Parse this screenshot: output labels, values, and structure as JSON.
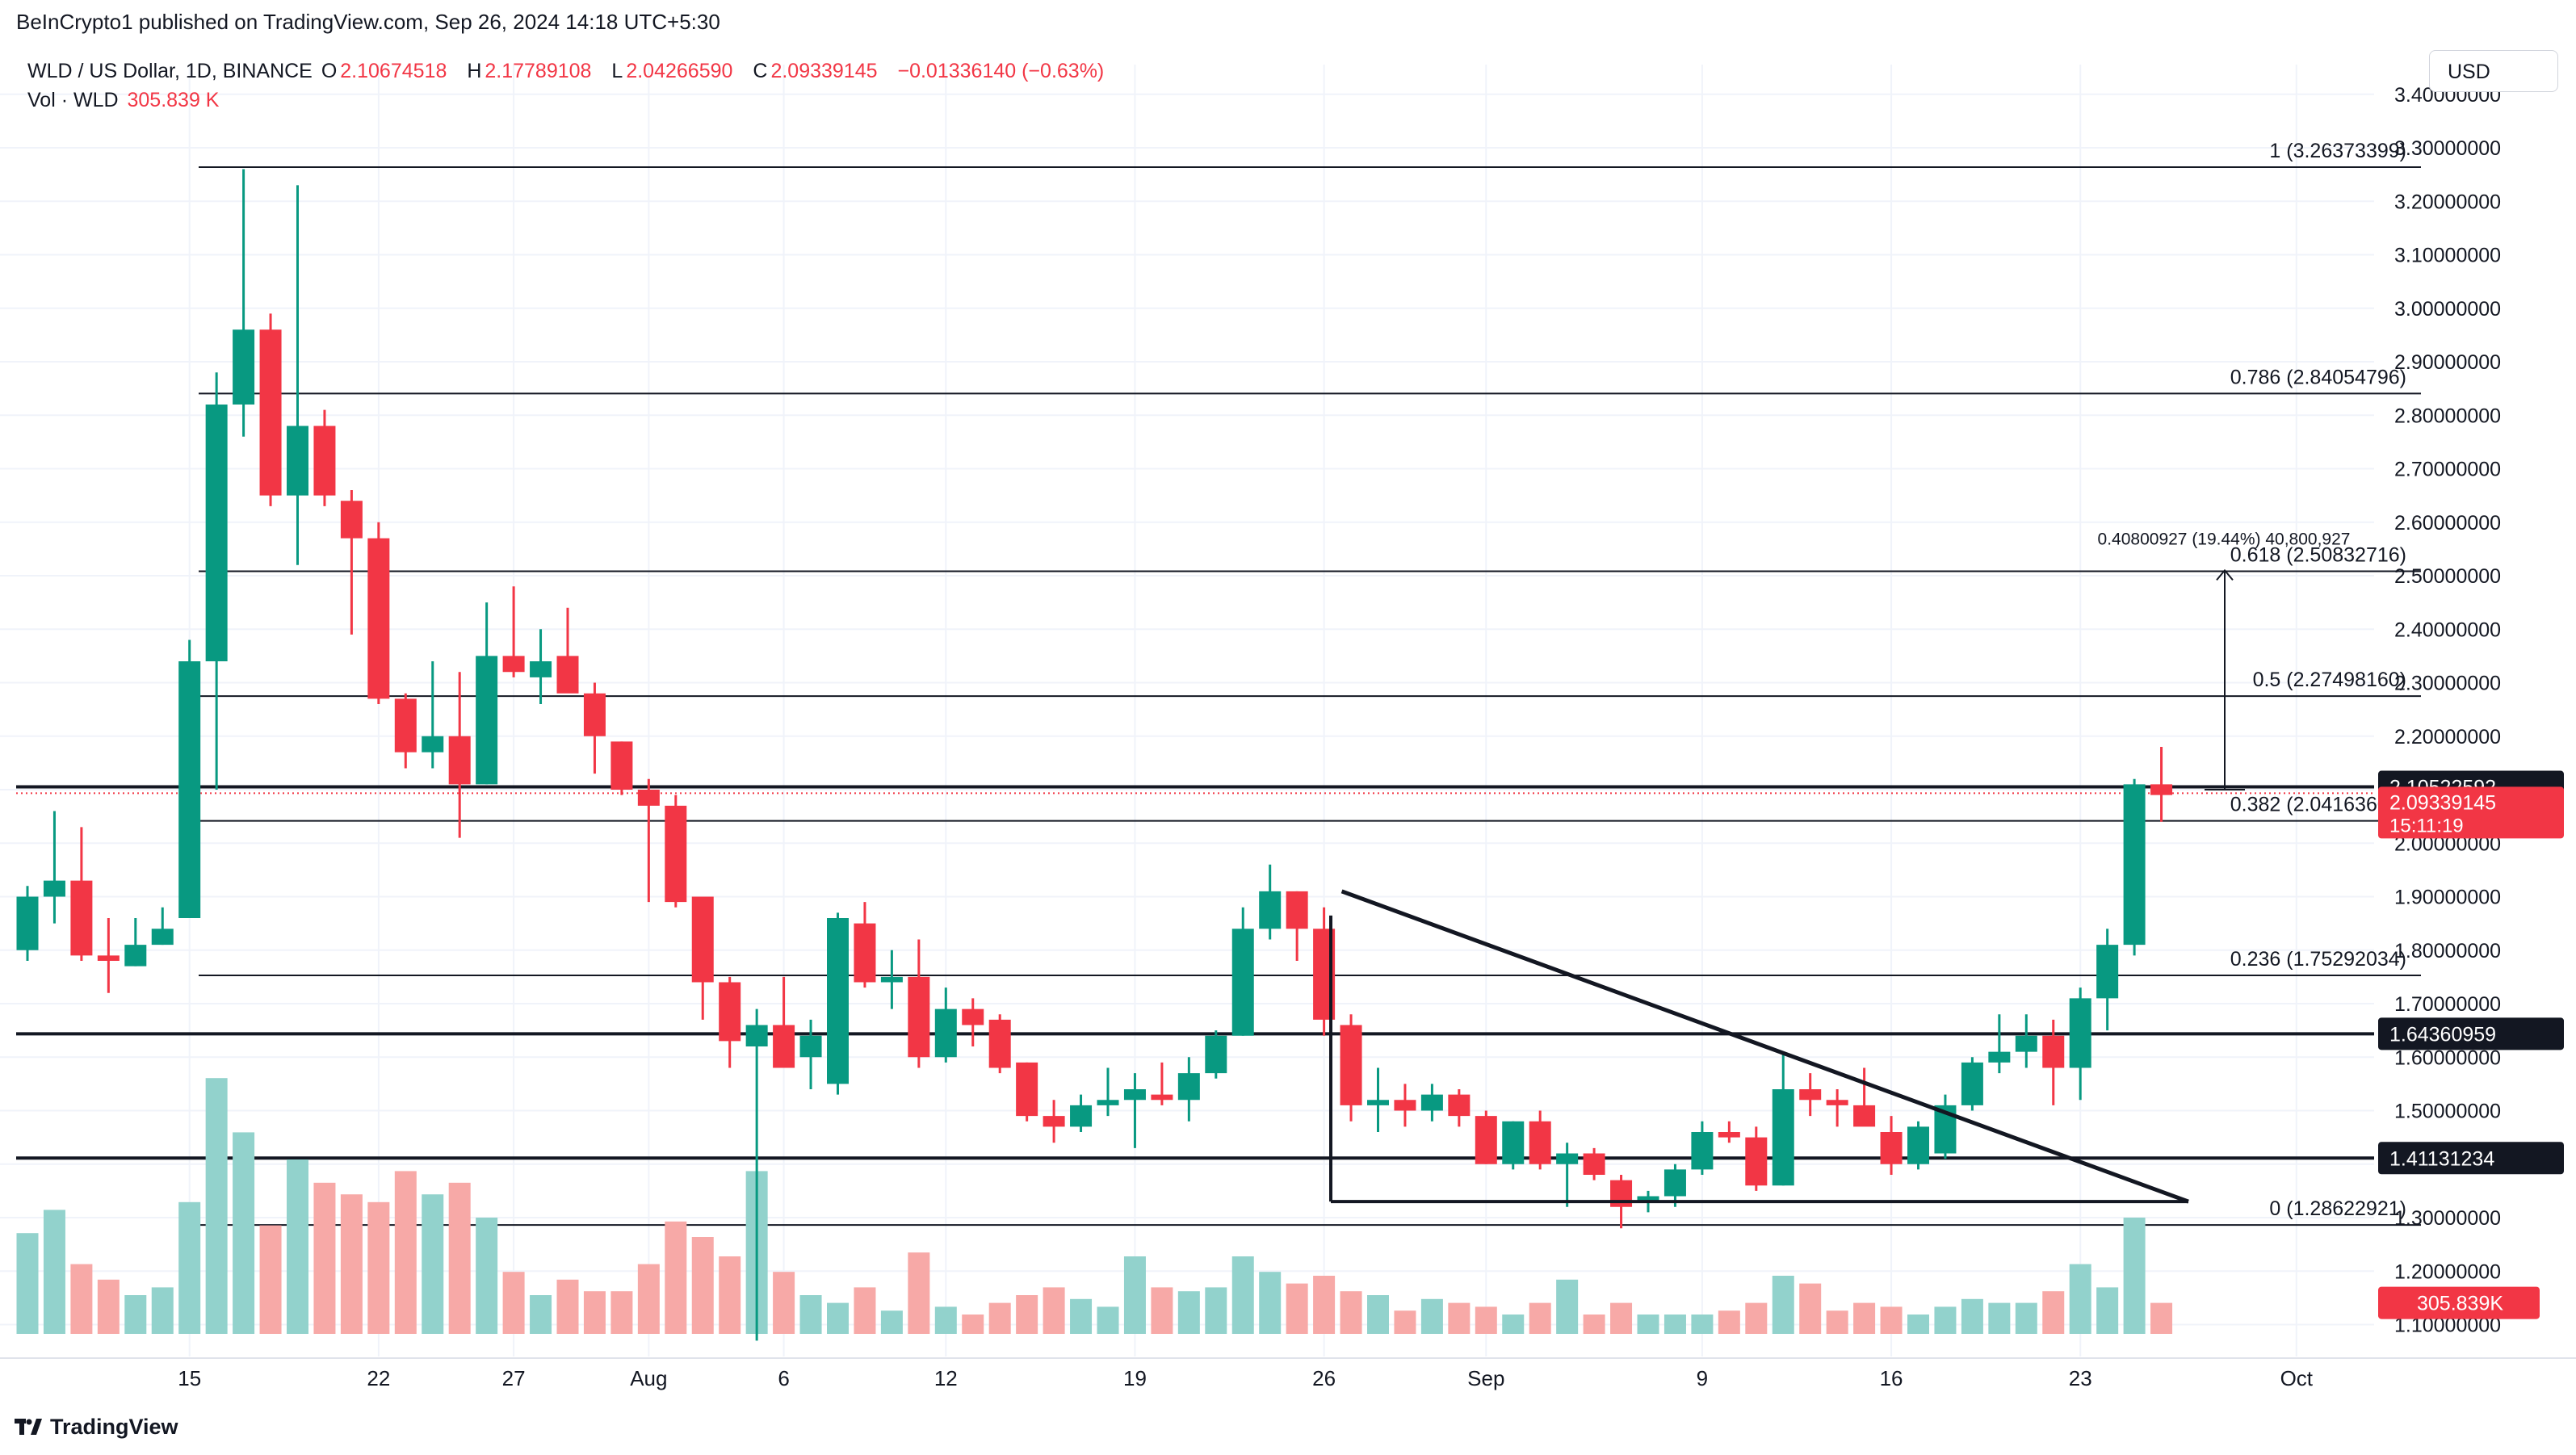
{
  "header": {
    "published": "BeInCrypto1 published on TradingView.com, Sep 26, 2024 14:18 UTC+5:30"
  },
  "legend": {
    "symbol": "WLD / US Dollar, 1D, BINANCE",
    "open_label": "O",
    "open": "2.10674518",
    "high_label": "H",
    "high": "2.17789108",
    "low_label": "L",
    "low": "2.04266590",
    "close_label": "C",
    "close": "2.09339145",
    "change": "−0.01336140 (−0.63%)",
    "vol_label": "Vol · WLD",
    "vol": "305.839 K"
  },
  "currency": "USD",
  "footer": {
    "brand": "TradingView"
  },
  "chart_data": {
    "type": "candlestick",
    "symbol": "WLD / US Dollar",
    "interval": "1D",
    "exchange": "BINANCE",
    "ylim": [
      1.05,
      3.42
    ],
    "y_ticks": [
      "1.10000000",
      "1.20000000",
      "1.30000000",
      "1.40000000",
      "1.50000000",
      "1.60000000",
      "1.70000000",
      "1.80000000",
      "1.90000000",
      "2.00000000",
      "2.10000000",
      "2.20000000",
      "2.30000000",
      "2.40000000",
      "2.50000000",
      "2.60000000",
      "2.70000000",
      "2.80000000",
      "2.90000000",
      "3.00000000",
      "3.10000000",
      "3.20000000",
      "3.30000000",
      "3.40000000"
    ],
    "x_ticks": [
      {
        "label": "15",
        "index": 6
      },
      {
        "label": "22",
        "index": 13
      },
      {
        "label": "27",
        "index": 18
      },
      {
        "label": "Aug",
        "index": 23
      },
      {
        "label": "6",
        "index": 28
      },
      {
        "label": "12",
        "index": 34
      },
      {
        "label": "19",
        "index": 41
      },
      {
        "label": "26",
        "index": 48
      },
      {
        "label": "Sep",
        "index": 54
      },
      {
        "label": "9",
        "index": 62
      },
      {
        "label": "16",
        "index": 69
      },
      {
        "label": "23",
        "index": 76
      },
      {
        "label": "Oct",
        "index": 84
      }
    ],
    "candles": [
      {
        "o": 1.8,
        "h": 1.92,
        "l": 1.78,
        "c": 1.9,
        "v": 130
      },
      {
        "o": 1.9,
        "h": 2.06,
        "l": 1.85,
        "c": 1.93,
        "v": 160
      },
      {
        "o": 1.93,
        "h": 2.03,
        "l": 1.78,
        "c": 1.79,
        "v": 90
      },
      {
        "o": 1.79,
        "h": 1.86,
        "l": 1.72,
        "c": 1.78,
        "v": 70
      },
      {
        "o": 1.77,
        "h": 1.86,
        "l": 1.77,
        "c": 1.81,
        "v": 50
      },
      {
        "o": 1.81,
        "h": 1.88,
        "l": 1.81,
        "c": 1.84,
        "v": 60
      },
      {
        "o": 1.86,
        "h": 2.38,
        "l": 1.86,
        "c": 2.34,
        "v": 170
      },
      {
        "o": 2.34,
        "h": 2.88,
        "l": 2.1,
        "c": 2.82,
        "v": 330
      },
      {
        "o": 2.82,
        "h": 3.26,
        "l": 2.76,
        "c": 2.96,
        "v": 260
      },
      {
        "o": 2.96,
        "h": 2.99,
        "l": 2.63,
        "c": 2.65,
        "v": 140
      },
      {
        "o": 2.65,
        "h": 3.23,
        "l": 2.52,
        "c": 2.78,
        "v": 225
      },
      {
        "o": 2.78,
        "h": 2.81,
        "l": 2.63,
        "c": 2.65,
        "v": 195
      },
      {
        "o": 2.64,
        "h": 2.66,
        "l": 2.39,
        "c": 2.57,
        "v": 180
      },
      {
        "o": 2.57,
        "h": 2.6,
        "l": 2.26,
        "c": 2.27,
        "v": 170
      },
      {
        "o": 2.27,
        "h": 2.28,
        "l": 2.14,
        "c": 2.17,
        "v": 210
      },
      {
        "o": 2.17,
        "h": 2.34,
        "l": 2.14,
        "c": 2.2,
        "v": 180
      },
      {
        "o": 2.2,
        "h": 2.32,
        "l": 2.01,
        "c": 2.11,
        "v": 195
      },
      {
        "o": 2.11,
        "h": 2.45,
        "l": 2.11,
        "c": 2.35,
        "v": 150
      },
      {
        "o": 2.35,
        "h": 2.48,
        "l": 2.31,
        "c": 2.32,
        "v": 80
      },
      {
        "o": 2.31,
        "h": 2.4,
        "l": 2.26,
        "c": 2.34,
        "v": 50
      },
      {
        "o": 2.35,
        "h": 2.44,
        "l": 2.3,
        "c": 2.28,
        "v": 70
      },
      {
        "o": 2.28,
        "h": 2.3,
        "l": 2.13,
        "c": 2.2,
        "v": 55
      },
      {
        "o": 2.19,
        "h": 2.19,
        "l": 2.09,
        "c": 2.1,
        "v": 55
      },
      {
        "o": 2.1,
        "h": 2.12,
        "l": 1.89,
        "c": 2.07,
        "v": 90
      },
      {
        "o": 2.07,
        "h": 2.09,
        "l": 1.88,
        "c": 1.89,
        "v": 145
      },
      {
        "o": 1.9,
        "h": 1.9,
        "l": 1.67,
        "c": 1.74,
        "v": 125
      },
      {
        "o": 1.74,
        "h": 1.75,
        "l": 1.58,
        "c": 1.63,
        "v": 100
      },
      {
        "o": 1.62,
        "h": 1.69,
        "l": 1.07,
        "c": 1.66,
        "v": 210
      },
      {
        "o": 1.66,
        "h": 1.75,
        "l": 1.59,
        "c": 1.58,
        "v": 80
      },
      {
        "o": 1.6,
        "h": 1.67,
        "l": 1.54,
        "c": 1.64,
        "v": 50
      },
      {
        "o": 1.55,
        "h": 1.87,
        "l": 1.53,
        "c": 1.86,
        "v": 40
      },
      {
        "o": 1.85,
        "h": 1.89,
        "l": 1.73,
        "c": 1.74,
        "v": 60
      },
      {
        "o": 1.74,
        "h": 1.8,
        "l": 1.69,
        "c": 1.75,
        "v": 30
      },
      {
        "o": 1.75,
        "h": 1.82,
        "l": 1.58,
        "c": 1.6,
        "v": 105
      },
      {
        "o": 1.6,
        "h": 1.73,
        "l": 1.59,
        "c": 1.69,
        "v": 35
      },
      {
        "o": 1.69,
        "h": 1.71,
        "l": 1.62,
        "c": 1.66,
        "v": 25
      },
      {
        "o": 1.67,
        "h": 1.68,
        "l": 1.57,
        "c": 1.58,
        "v": 40
      },
      {
        "o": 1.59,
        "h": 1.59,
        "l": 1.48,
        "c": 1.49,
        "v": 50
      },
      {
        "o": 1.49,
        "h": 1.52,
        "l": 1.44,
        "c": 1.47,
        "v": 60
      },
      {
        "o": 1.47,
        "h": 1.53,
        "l": 1.46,
        "c": 1.51,
        "v": 45
      },
      {
        "o": 1.51,
        "h": 1.58,
        "l": 1.49,
        "c": 1.52,
        "v": 35
      },
      {
        "o": 1.52,
        "h": 1.57,
        "l": 1.43,
        "c": 1.54,
        "v": 100
      },
      {
        "o": 1.53,
        "h": 1.59,
        "l": 1.51,
        "c": 1.52,
        "v": 60
      },
      {
        "o": 1.52,
        "h": 1.6,
        "l": 1.48,
        "c": 1.57,
        "v": 55
      },
      {
        "o": 1.57,
        "h": 1.65,
        "l": 1.56,
        "c": 1.64,
        "v": 60
      },
      {
        "o": 1.64,
        "h": 1.88,
        "l": 1.64,
        "c": 1.84,
        "v": 100
      },
      {
        "o": 1.84,
        "h": 1.96,
        "l": 1.82,
        "c": 1.91,
        "v": 80
      },
      {
        "o": 1.91,
        "h": 1.91,
        "l": 1.78,
        "c": 1.84,
        "v": 65
      },
      {
        "o": 1.84,
        "h": 1.88,
        "l": 1.64,
        "c": 1.67,
        "v": 75
      },
      {
        "o": 1.66,
        "h": 1.68,
        "l": 1.48,
        "c": 1.51,
        "v": 55
      },
      {
        "o": 1.51,
        "h": 1.58,
        "l": 1.46,
        "c": 1.52,
        "v": 50
      },
      {
        "o": 1.52,
        "h": 1.55,
        "l": 1.47,
        "c": 1.5,
        "v": 30
      },
      {
        "o": 1.5,
        "h": 1.55,
        "l": 1.48,
        "c": 1.53,
        "v": 45
      },
      {
        "o": 1.53,
        "h": 1.54,
        "l": 1.47,
        "c": 1.49,
        "v": 40
      },
      {
        "o": 1.49,
        "h": 1.5,
        "l": 1.4,
        "c": 1.4,
        "v": 35
      },
      {
        "o": 1.4,
        "h": 1.48,
        "l": 1.39,
        "c": 1.48,
        "v": 25
      },
      {
        "o": 1.48,
        "h": 1.5,
        "l": 1.39,
        "c": 1.4,
        "v": 40
      },
      {
        "o": 1.4,
        "h": 1.44,
        "l": 1.32,
        "c": 1.42,
        "v": 70
      },
      {
        "o": 1.42,
        "h": 1.43,
        "l": 1.37,
        "c": 1.38,
        "v": 25
      },
      {
        "o": 1.37,
        "h": 1.38,
        "l": 1.28,
        "c": 1.32,
        "v": 40
      },
      {
        "o": 1.33,
        "h": 1.35,
        "l": 1.31,
        "c": 1.34,
        "v": 25
      },
      {
        "o": 1.34,
        "h": 1.4,
        "l": 1.32,
        "c": 1.39,
        "v": 25
      },
      {
        "o": 1.39,
        "h": 1.48,
        "l": 1.38,
        "c": 1.46,
        "v": 25
      },
      {
        "o": 1.46,
        "h": 1.48,
        "l": 1.44,
        "c": 1.45,
        "v": 30
      },
      {
        "o": 1.45,
        "h": 1.47,
        "l": 1.35,
        "c": 1.36,
        "v": 40
      },
      {
        "o": 1.36,
        "h": 1.61,
        "l": 1.36,
        "c": 1.54,
        "v": 75
      },
      {
        "o": 1.54,
        "h": 1.57,
        "l": 1.49,
        "c": 1.52,
        "v": 65
      },
      {
        "o": 1.52,
        "h": 1.54,
        "l": 1.47,
        "c": 1.51,
        "v": 30
      },
      {
        "o": 1.51,
        "h": 1.58,
        "l": 1.48,
        "c": 1.47,
        "v": 40
      },
      {
        "o": 1.46,
        "h": 1.49,
        "l": 1.38,
        "c": 1.4,
        "v": 35
      },
      {
        "o": 1.4,
        "h": 1.48,
        "l": 1.39,
        "c": 1.47,
        "v": 25
      },
      {
        "o": 1.42,
        "h": 1.53,
        "l": 1.41,
        "c": 1.51,
        "v": 35
      },
      {
        "o": 1.51,
        "h": 1.6,
        "l": 1.5,
        "c": 1.59,
        "v": 45
      },
      {
        "o": 1.59,
        "h": 1.68,
        "l": 1.57,
        "c": 1.61,
        "v": 40
      },
      {
        "o": 1.61,
        "h": 1.68,
        "l": 1.58,
        "c": 1.64,
        "v": 40
      },
      {
        "o": 1.64,
        "h": 1.67,
        "l": 1.51,
        "c": 1.58,
        "v": 55
      },
      {
        "o": 1.58,
        "h": 1.73,
        "l": 1.52,
        "c": 1.71,
        "v": 90
      },
      {
        "o": 1.71,
        "h": 1.84,
        "l": 1.65,
        "c": 1.81,
        "v": 60
      },
      {
        "o": 1.81,
        "h": 2.12,
        "l": 1.79,
        "c": 2.11,
        "v": 150
      },
      {
        "o": 2.11,
        "h": 2.18,
        "l": 2.04,
        "c": 2.09,
        "v": 40
      }
    ],
    "fib_levels": [
      {
        "ratio": "1",
        "value": 3.26373399,
        "label": "1 (3.26373399)"
      },
      {
        "ratio": "0.786",
        "value": 2.84054796,
        "label": "0.786 (2.84054796)"
      },
      {
        "ratio": "0.618",
        "value": 2.50832716,
        "label": "0.618 (2.50832716)"
      },
      {
        "ratio": "0.5",
        "value": 2.2749816,
        "label": "0.5 (2.27498160)"
      },
      {
        "ratio": "0.382",
        "value": 2.04163604,
        "label": "0.382 (2.04163604)"
      },
      {
        "ratio": "0.236",
        "value": 1.75292034,
        "label": "0.236 (1.75292034)"
      },
      {
        "ratio": "0",
        "value": 1.28622921,
        "label": "0 (1.28622921)"
      }
    ],
    "horizontal_levels": [
      {
        "value": 2.10522592,
        "label": "2.10522592"
      },
      {
        "value": 1.64360959,
        "label": "1.64360959"
      },
      {
        "value": 1.41131234,
        "label": "1.41131234"
      }
    ],
    "measure": {
      "label": "0.40800927 (19.44%) 40,800,927",
      "from_value": 2.1,
      "to_value": 2.51,
      "index": 80
    },
    "triangle": {
      "apex_start": {
        "index": 48,
        "value": 1.91
      },
      "apex_end": {
        "index": 80,
        "value": 1.33
      },
      "base_value": 1.33
    },
    "last_price": {
      "value": 2.09339145,
      "label": "2.09339145",
      "countdown": "15:11:19"
    },
    "last_volume": {
      "label": "305.839K"
    },
    "up_color": "#089981",
    "down_color": "#f23645",
    "up_volume_color": "#92d2cc",
    "down_volume_color": "#f7a9a7"
  }
}
